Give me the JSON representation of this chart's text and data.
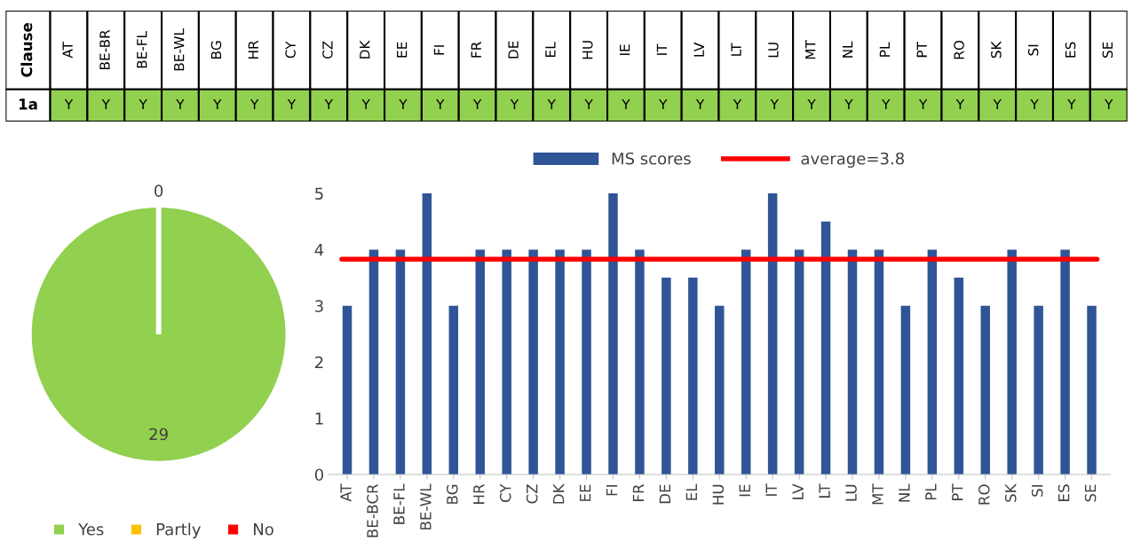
{
  "chart_data": [
    {
      "type": "other",
      "ylabel": "Clause",
      "categories": [
        "AT",
        "BE-BR",
        "BE-FL",
        "BE-WL",
        "BG",
        "HR",
        "CY",
        "CZ",
        "DK",
        "EE",
        "FI",
        "FR",
        "DE",
        "EL",
        "HU",
        "IE",
        "IT",
        "LV",
        "LT",
        "LU",
        "MT",
        "NL",
        "PL",
        "PT",
        "RO",
        "SK",
        "SI",
        "ES",
        "SE"
      ],
      "y_categories": [
        "1a"
      ],
      "cell_labels": [
        [
          "Y",
          "Y",
          "Y",
          "Y",
          "Y",
          "Y",
          "Y",
          "Y",
          "Y",
          "Y",
          "Y",
          "Y",
          "Y",
          "Y",
          "Y",
          "Y",
          "Y",
          "Y",
          "Y",
          "Y",
          "Y",
          "Y",
          "Y",
          "Y",
          "Y",
          "Y",
          "Y",
          "Y",
          "Y"
        ]
      ],
      "color": "#92d050"
    },
    {
      "type": "pie",
      "categories": [
        "Yes",
        "Partly",
        "No"
      ],
      "values": [
        29,
        0,
        0
      ],
      "colors": [
        "#92d050",
        "#ffc000",
        "#ff0000"
      ],
      "value_labels": [
        "29",
        "0",
        null
      ],
      "legend": "bottom"
    },
    {
      "type": "bar",
      "categories": [
        "AT",
        "BE-BCR",
        "BE-FL",
        "BE-WL",
        "BG",
        "HR",
        "CY",
        "CZ",
        "DK",
        "EE",
        "FI",
        "FR",
        "DE",
        "EL",
        "HU",
        "IE",
        "IT",
        "LV",
        "LT",
        "LU",
        "MT",
        "NL",
        "PL",
        "PT",
        "RO",
        "SK",
        "SI",
        "ES",
        "SE"
      ],
      "series": [
        {
          "name": "MS scores",
          "color": "#2f5597",
          "values": [
            3,
            4,
            4,
            5,
            3,
            4,
            4,
            4,
            4,
            4,
            5,
            4,
            3.5,
            3.5,
            3,
            4,
            5,
            4,
            4.5,
            4,
            4,
            3,
            4,
            3.5,
            3,
            4,
            3,
            4,
            3
          ]
        }
      ],
      "ylim": [
        0,
        5
      ],
      "yticks": [
        0,
        1,
        2,
        3,
        4,
        5
      ],
      "ref_lines": [
        {
          "axis": "y",
          "value": 3.83,
          "label": "average=3.8",
          "color": "#ff0000"
        }
      ],
      "legend": "top"
    }
  ]
}
